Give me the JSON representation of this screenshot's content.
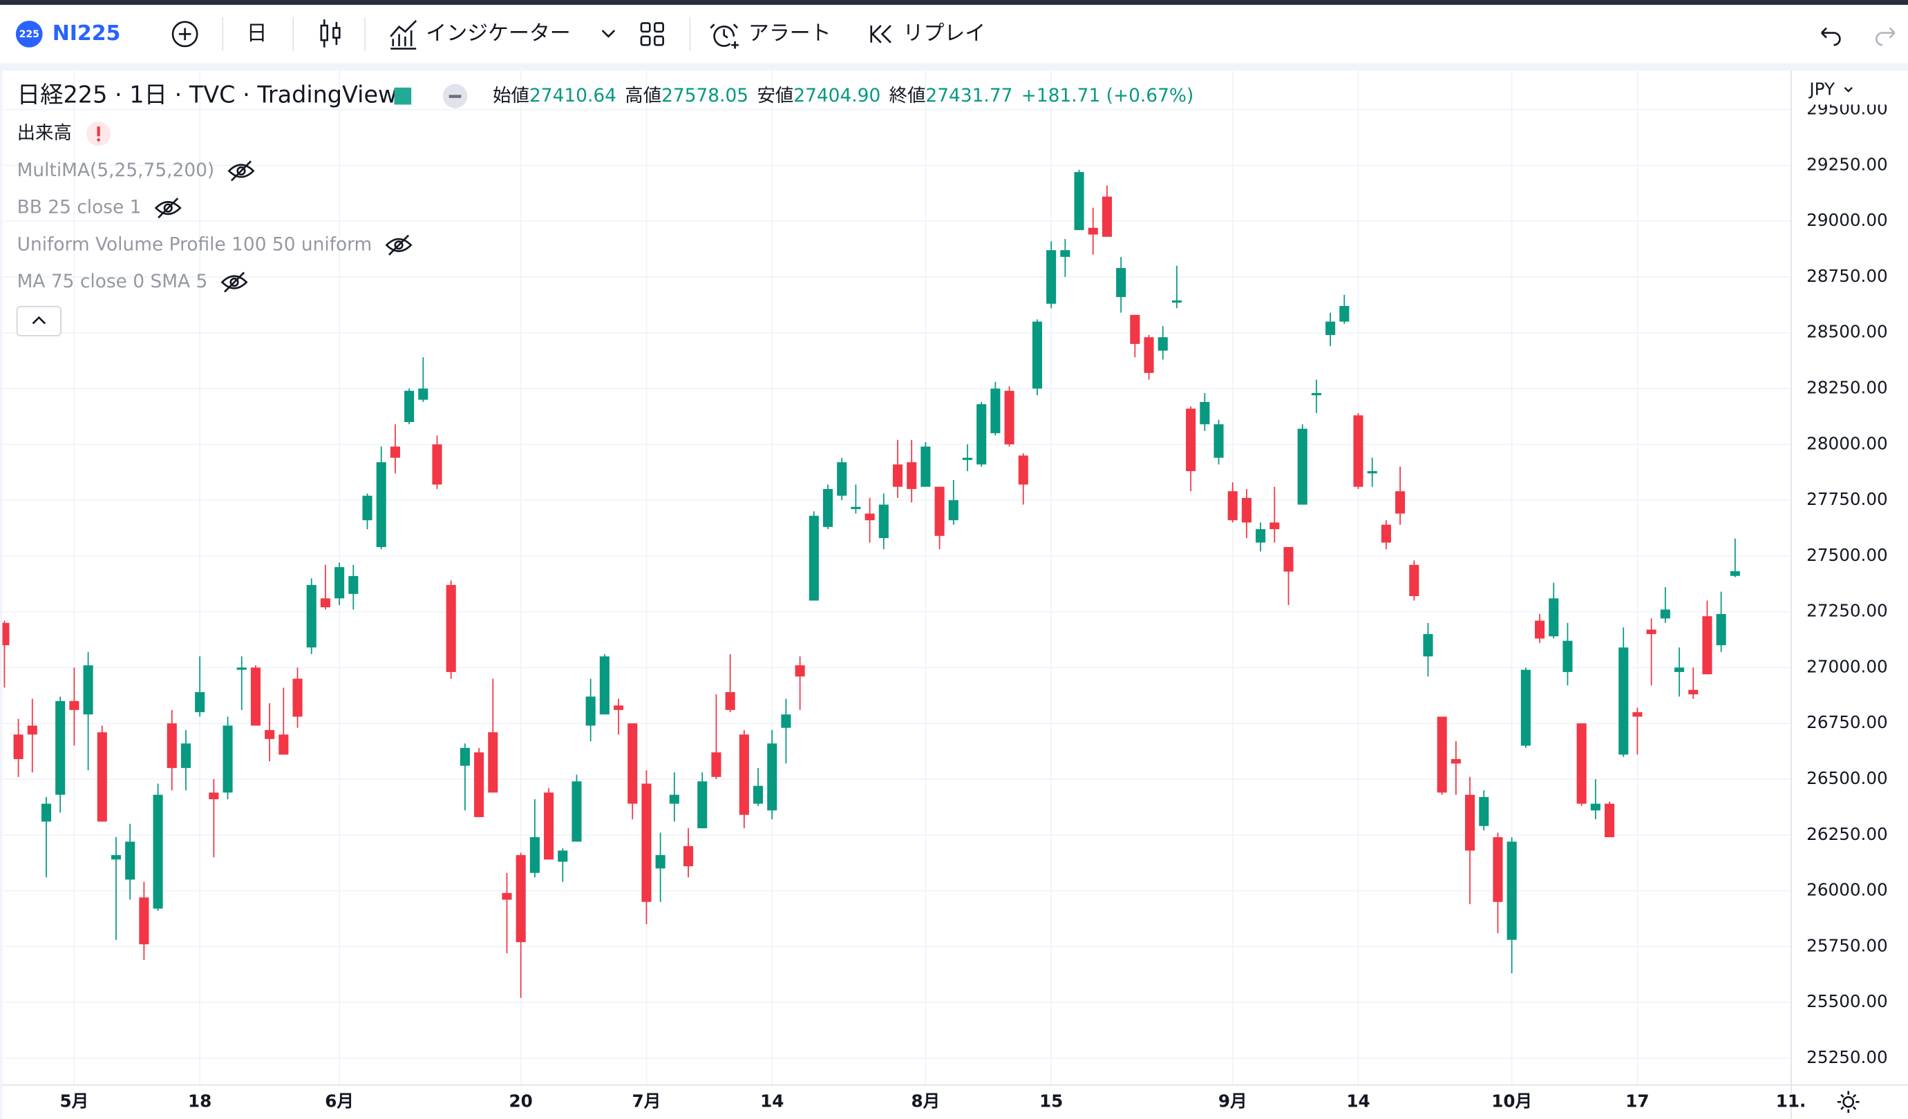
{
  "toolbar": {
    "badge": "225",
    "symbol": "NI225",
    "interval": "日",
    "indicators": "インジケーター",
    "alerts": "アラート",
    "replay": "リプレイ"
  },
  "legend": {
    "title": "日経225 · 1日 · TVC · TradingView",
    "ohlc": [
      {
        "label": "始値",
        "value": "27410.64"
      },
      {
        "label": "高値",
        "value": "27578.05"
      },
      {
        "label": "安値",
        "value": "27404.90"
      },
      {
        "label": "終値",
        "value": "27431.77"
      }
    ],
    "change": "+181.71 (+0.67%)",
    "indicators": [
      "出来高",
      "MultiMA(5,25,75,200)",
      "BB 25 close 1",
      "Uniform Volume Profile 100 50 uniform",
      "MA 75 close 0 SMA 5"
    ]
  },
  "chart_data": {
    "type": "candlestick",
    "currency": "JPY",
    "up_color": "#089981",
    "down_color": "#f23645",
    "grid": true,
    "categories": [
      null,
      null,
      null,
      null,
      null,
      "5月",
      null,
      null,
      null,
      null,
      null,
      null,
      null,
      null,
      "18",
      null,
      null,
      null,
      null,
      null,
      null,
      null,
      null,
      null,
      "6月",
      null,
      null,
      null,
      null,
      null,
      null,
      null,
      null,
      null,
      null,
      null,
      null,
      "20",
      null,
      null,
      null,
      null,
      null,
      null,
      null,
      null,
      "7月",
      null,
      null,
      null,
      null,
      null,
      null,
      null,
      null,
      "14",
      null,
      null,
      null,
      null,
      null,
      null,
      null,
      null,
      null,
      null,
      "8月",
      null,
      null,
      null,
      null,
      null,
      null,
      null,
      null,
      "15",
      null,
      null,
      null,
      null,
      null,
      null,
      null,
      null,
      null,
      null,
      null,
      null,
      "9月",
      null,
      null,
      null,
      null,
      null,
      null,
      null,
      null,
      "14",
      null,
      null,
      null,
      null,
      null,
      null,
      null,
      null,
      null,
      null,
      "10月",
      null,
      null,
      null,
      null,
      null,
      null,
      null,
      null,
      "17",
      null,
      null,
      null,
      null,
      null,
      null,
      null,
      null,
      null,
      null,
      "11."
    ],
    "open": [
      27200,
      26700,
      26740,
      26310,
      26430,
      26850,
      26790,
      26710,
      26140,
      26050,
      25970,
      25920,
      26750,
      26550,
      26800,
      26440,
      26440,
      26990,
      27000,
      26720,
      26700,
      26950,
      27090,
      27310,
      27310,
      27330,
      27660,
      27540,
      27990,
      28100,
      28200,
      28000,
      27370,
      26560,
      26620,
      26710,
      25990,
      26160,
      26080,
      26440,
      26130,
      26220,
      26740,
      26790,
      26830,
      26750,
      26480,
      26100,
      26390,
      26200,
      26280,
      26620,
      26890,
      26700,
      26390,
      26360,
      26730,
      27010,
      27300,
      27630,
      27770,
      27710,
      27690,
      27580,
      27910,
      27920,
      27810,
      27810,
      27660,
      27930,
      27910,
      28050,
      28240,
      27950,
      28250,
      28630,
      28840,
      28960,
      28970,
      29110,
      28660,
      28580,
      28480,
      28420,
      28635,
      28160,
      28090,
      27940,
      27790,
      27760,
      27560,
      27650,
      27540,
      27730,
      28220,
      28490,
      28550,
      28130,
      27870,
      27640,
      27790,
      27460,
      27050,
      26780,
      26590,
      26430,
      26290,
      26240,
      25780,
      26650,
      27210,
      27140,
      26980,
      26750,
      26360,
      26390,
      26610,
      26800,
      27170,
      27220,
      26980,
      26900,
      27230,
      27100,
      27410.64,
      null,
      null,
      null,
      null
    ],
    "high": [
      27210,
      26770,
      26860,
      26420,
      26870,
      27000,
      27070,
      26740,
      26240,
      26300,
      26040,
      26480,
      26810,
      26720,
      27050,
      26500,
      26780,
      27050,
      27010,
      26840,
      26910,
      27000,
      27400,
      27460,
      27470,
      27460,
      27780,
      27990,
      28090,
      28250,
      28390,
      28040,
      27390,
      26660,
      26640,
      26950,
      26080,
      26170,
      26410,
      26460,
      26190,
      26520,
      26950,
      27060,
      26860,
      26750,
      26540,
      26260,
      26530,
      26280,
      26530,
      26880,
      27060,
      26720,
      26550,
      26720,
      26860,
      27050,
      27700,
      27820,
      27940,
      27820,
      27760,
      27780,
      28020,
      28020,
      28010,
      27810,
      27840,
      28000,
      28190,
      28280,
      28260,
      27960,
      28560,
      28910,
      28920,
      29230,
      29060,
      29160,
      28840,
      28580,
      28490,
      28530,
      28800,
      28170,
      28230,
      28110,
      27830,
      27800,
      27650,
      27810,
      27540,
      28090,
      28290,
      28590,
      28670,
      28140,
      27940,
      27660,
      27900,
      27480,
      27200,
      26780,
      26670,
      26510,
      26450,
      26260,
      26240,
      27000,
      27240,
      27380,
      27200,
      26750,
      26500,
      26400,
      27180,
      26820,
      27220,
      27360,
      27090,
      27000,
      27300,
      27340,
      27578.05,
      null,
      null,
      null,
      null
    ],
    "low": [
      26910,
      26510,
      26530,
      26060,
      26350,
      26650,
      26540,
      26310,
      25780,
      25960,
      25690,
      25910,
      26450,
      26450,
      26780,
      26150,
      26410,
      26810,
      26740,
      26580,
      26610,
      26730,
      27060,
      27260,
      27280,
      27260,
      27620,
      27530,
      27870,
      28090,
      28190,
      27800,
      26950,
      26360,
      26330,
      26440,
      25720,
      25520,
      26060,
      26140,
      26040,
      26220,
      26670,
      26790,
      26700,
      26320,
      25850,
      25950,
      26310,
      26060,
      26280,
      26500,
      26800,
      26280,
      26380,
      26320,
      26570,
      26810,
      27300,
      27620,
      27750,
      27690,
      27560,
      27530,
      27760,
      27740,
      27810,
      27530,
      27640,
      27880,
      27900,
      28040,
      27990,
      27730,
      28220,
      28610,
      28750,
      28960,
      28850,
      28930,
      28590,
      28390,
      28290,
      28380,
      28610,
      27790,
      28060,
      27910,
      27650,
      27580,
      27520,
      27560,
      27280,
      27730,
      28140,
      28440,
      28540,
      27800,
      27810,
      27530,
      27640,
      27300,
      26960,
      26430,
      26430,
      25940,
      26270,
      25810,
      25630,
      26640,
      27110,
      27130,
      26920,
      26380,
      26320,
      26240,
      26600,
      26610,
      26920,
      27200,
      26870,
      26860,
      26970,
      27070,
      27404.9,
      null,
      null,
      null,
      null
    ],
    "close": [
      27100,
      26590,
      26700,
      26390,
      26850,
      26810,
      27010,
      26310,
      26160,
      26220,
      25760,
      26430,
      26550,
      26660,
      26890,
      26410,
      26740,
      27000,
      26740,
      26680,
      26610,
      26780,
      27370,
      27270,
      27450,
      27410,
      27770,
      27920,
      27940,
      28240,
      28250,
      27820,
      26980,
      26640,
      26330,
      26440,
      25960,
      25770,
      26240,
      26140,
      26180,
      26490,
      26870,
      27050,
      26810,
      26390,
      25950,
      26160,
      26430,
      26110,
      26490,
      26510,
      26810,
      26340,
      26470,
      26660,
      26790,
      26960,
      27680,
      27800,
      27920,
      27720,
      27660,
      27730,
      27810,
      27800,
      27990,
      27590,
      27750,
      27940,
      28180,
      28250,
      28000,
      27820,
      28550,
      28870,
      28870,
      29220,
      28940,
      28930,
      28790,
      28450,
      28320,
      28480,
      28645,
      27880,
      28190,
      28090,
      27660,
      27650,
      27620,
      27620,
      27430,
      28070,
      28230,
      28550,
      28620,
      27810,
      27880,
      27560,
      27690,
      27320,
      27150,
      26440,
      26570,
      26180,
      26420,
      25950,
      26220,
      26990,
      27130,
      27310,
      27120,
      26390,
      26390,
      26240,
      27090,
      26780,
      27150,
      27260,
      27000,
      26880,
      26970,
      27240,
      27431.77,
      null,
      null,
      null,
      null
    ],
    "ylim": [
      25130,
      29653
    ],
    "yticks": [
      {
        "value": 25250,
        "label": "25250.00"
      },
      {
        "value": 25500,
        "label": "25500.00"
      },
      {
        "value": 25750,
        "label": "25750.00"
      },
      {
        "value": 26000,
        "label": "26000.00"
      },
      {
        "value": 26250,
        "label": "26250.00"
      },
      {
        "value": 26500,
        "label": "26500.00"
      },
      {
        "value": 26750,
        "label": "26750.00"
      },
      {
        "value": 27000,
        "label": "27000.00"
      },
      {
        "value": 27250,
        "label": "27250.00"
      },
      {
        "value": 27500,
        "label": "27500.00"
      },
      {
        "value": 27750,
        "label": "27750.00"
      },
      {
        "value": 28000,
        "label": "28000.00"
      },
      {
        "value": 28250,
        "label": "28250.00"
      },
      {
        "value": 28500,
        "label": "28500.00"
      },
      {
        "value": 28750,
        "label": "28750.00"
      },
      {
        "value": 29000,
        "label": "29000.00"
      },
      {
        "value": 29250,
        "label": "29250.00"
      },
      {
        "value": 29500,
        "label": "29500.00"
      }
    ]
  }
}
